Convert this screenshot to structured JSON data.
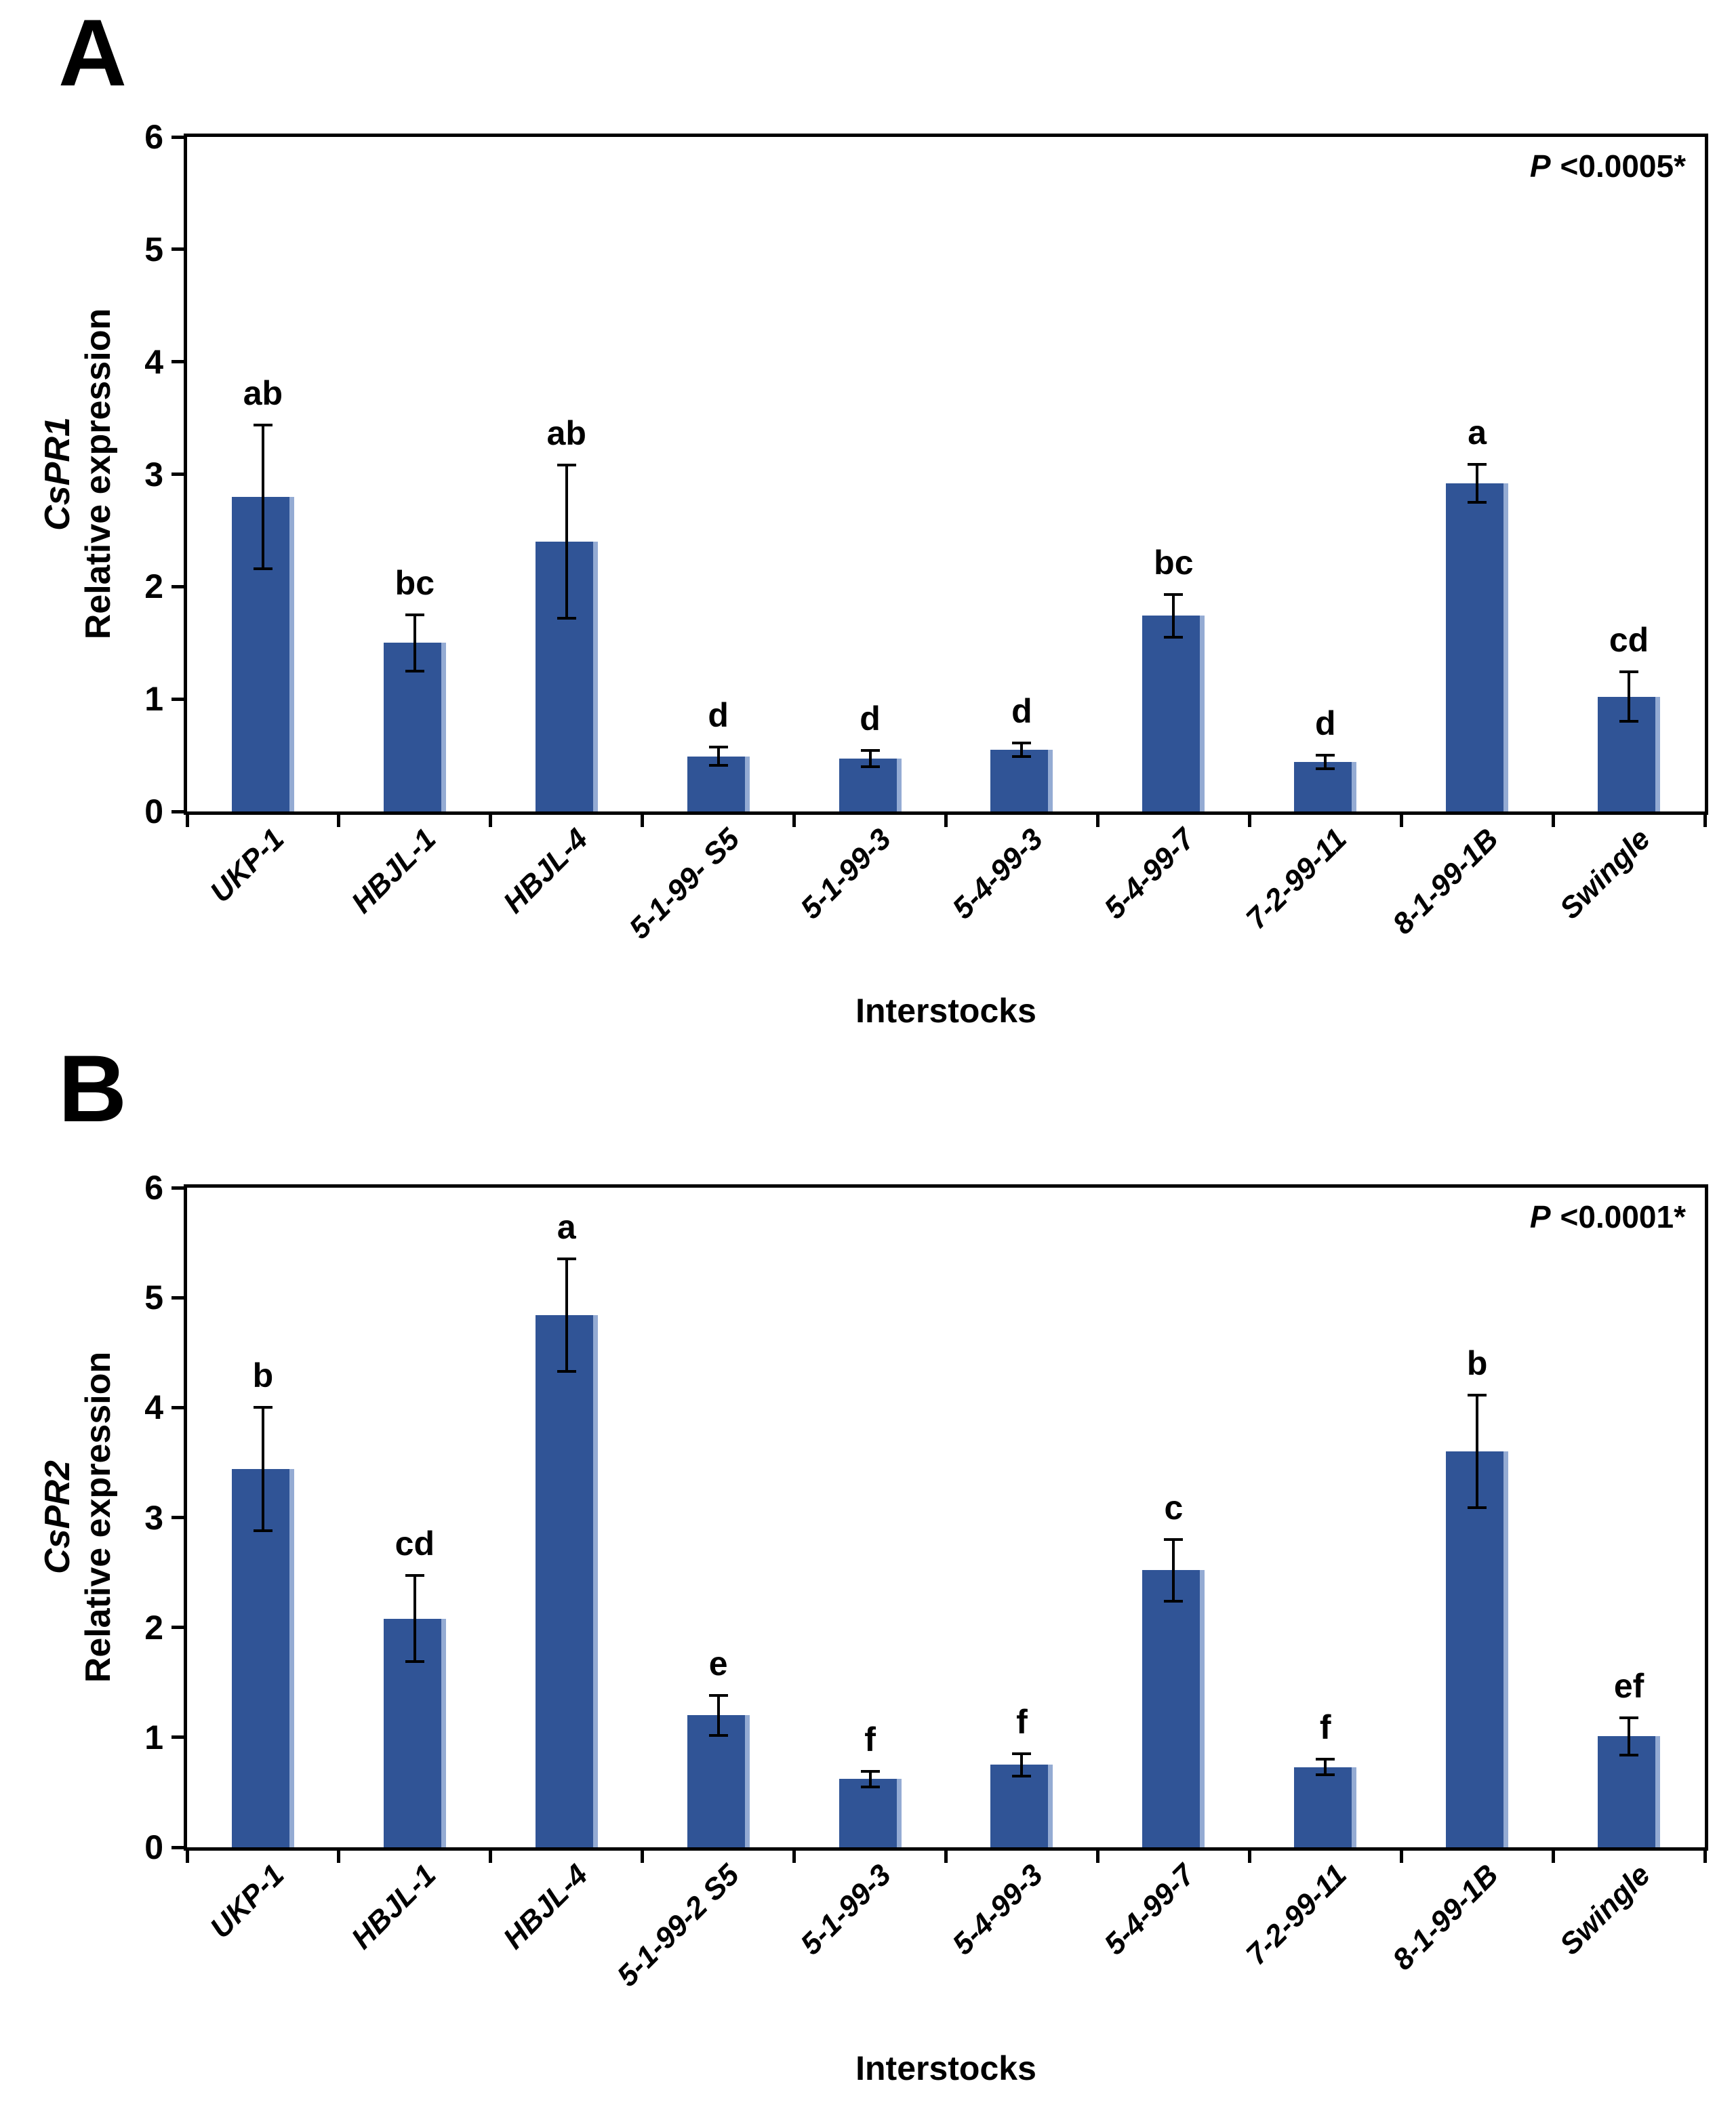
{
  "colors": {
    "bar": "#305496",
    "bar_highlight": "#94ABD3",
    "axis": "#000000"
  },
  "chart_data": [
    {
      "type": "bar",
      "panel": "A",
      "title": "CsPR1",
      "ylabel": "Relative expression",
      "xlabel": "Interstocks",
      "p_label": "P",
      "p_rest": "<0.0005*",
      "ylim": [
        0,
        6
      ],
      "yticks": [
        0,
        1,
        2,
        3,
        4,
        5,
        6
      ],
      "grid": false,
      "legend": "none",
      "categories": [
        "UKP-1",
        "HBJL-1",
        "HBJL-4",
        "5-1-99- S5",
        "5-1-99-3",
        "5-4-99-3",
        "5-4-99-7",
        "7-2-99-11",
        "8-1-99-1B",
        "Swingle"
      ],
      "values": [
        2.8,
        1.5,
        2.4,
        0.49,
        0.47,
        0.55,
        1.74,
        0.44,
        2.92,
        1.02
      ],
      "errors": [
        0.64,
        0.25,
        0.68,
        0.08,
        0.07,
        0.06,
        0.19,
        0.06,
        0.17,
        0.22
      ],
      "sig_letters": [
        "ab",
        "bc",
        "ab",
        "d",
        "d",
        "d",
        "bc",
        "d",
        "a",
        "cd"
      ]
    },
    {
      "type": "bar",
      "panel": "B",
      "title": "CsPR2",
      "ylabel": "Relative expression",
      "xlabel": "Interstocks",
      "p_label": "P",
      "p_rest": "<0.0001*",
      "ylim": [
        0,
        6
      ],
      "yticks": [
        0,
        1,
        2,
        3,
        4,
        5,
        6
      ],
      "grid": false,
      "legend": "none",
      "categories": [
        "UKP-1",
        "HBJL-1",
        "HBJL-4",
        "5-1-99-2 S5",
        "5-1-99-3",
        "5-4-99-3",
        "5-4-99-7",
        "7-2-99-11",
        "8-1-99-1B",
        "Swingle"
      ],
      "values": [
        3.44,
        2.08,
        4.84,
        1.2,
        0.62,
        0.75,
        2.52,
        0.73,
        3.6,
        1.01
      ],
      "errors": [
        0.56,
        0.39,
        0.51,
        0.18,
        0.07,
        0.1,
        0.28,
        0.07,
        0.51,
        0.17
      ],
      "sig_letters": [
        "b",
        "cd",
        "a",
        "e",
        "f",
        "f",
        "c",
        "f",
        "b",
        "ef"
      ]
    }
  ]
}
